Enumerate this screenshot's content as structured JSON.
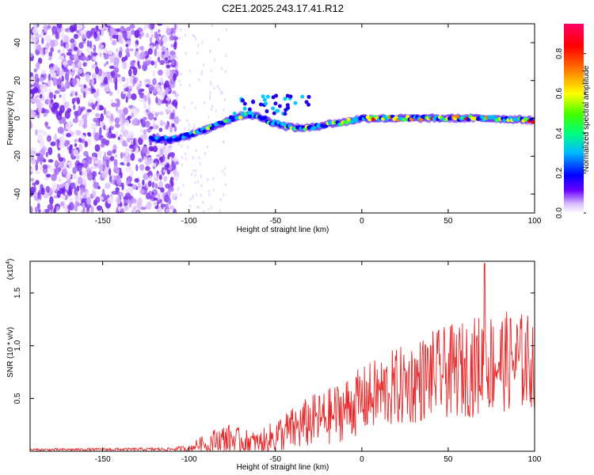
{
  "title": "C2E1.2025.243.17.41.R12",
  "chart_data": [
    {
      "type": "heatmap",
      "name": "spectrogram",
      "title": "C2E1.2025.243.17.41.R12",
      "xlabel": "Height of straight line (km)",
      "ylabel": "Frequency (Hz)",
      "xlim": [
        -192,
        100
      ],
      "ylim": [
        -50,
        50
      ],
      "xticks": [
        -150,
        -100,
        -50,
        0,
        50,
        100
      ],
      "xtick_labels": [
        "-150",
        "-100",
        "-50",
        "0",
        "50",
        "100"
      ],
      "yticks": [
        -40,
        -20,
        0,
        20,
        40
      ],
      "ytick_labels": [
        "-40",
        "-20",
        "0",
        "20",
        "40"
      ],
      "ridge": {
        "description_x": [
          -122,
          -110,
          -100,
          -90,
          -80,
          -72,
          -66,
          -60,
          -52,
          -45,
          -38,
          -30,
          -20,
          -10,
          0,
          10,
          25,
          50,
          75,
          100
        ],
        "frequency_hz": [
          -11,
          -11,
          -9,
          -6,
          -2,
          1,
          2,
          1,
          -2,
          -4,
          -5,
          -5,
          -3,
          -2,
          0,
          0,
          0,
          0,
          0,
          -1
        ]
      },
      "noise_region_x": [
        -192,
        -107
      ],
      "colorbar": {
        "label": "Normalized spectral amplitude",
        "range": [
          0,
          0.95
        ],
        "ticks": [
          0.0,
          0.2,
          0.4,
          0.6,
          0.8
        ],
        "tick_labels": [
          "0.0",
          "0.2",
          "0.4",
          "0.6",
          "0.8"
        ],
        "colors": [
          "#ffffff",
          "#6600ff",
          "#0000ff",
          "#00bbff",
          "#00ff80",
          "#40ff00",
          "#ffff00",
          "#ff8000",
          "#ff0000",
          "#ff0066"
        ]
      }
    },
    {
      "type": "line",
      "name": "snr",
      "xlabel": "Height of straight line (km)",
      "ylabel": "SNR (10 * v/v)",
      "yscale_label": "(x10",
      "yscale_exp": "4",
      "yscale_close": ")",
      "xlim": [
        -192,
        100
      ],
      "ylim": [
        0,
        1.8
      ],
      "xticks": [
        -150,
        -100,
        -50,
        0,
        50,
        100
      ],
      "xtick_labels": [
        "-150",
        "-100",
        "-50",
        "0",
        "50",
        "100"
      ],
      "yticks": [
        0.5,
        1.0,
        1.5
      ],
      "ytick_labels": [
        "0.5",
        "1.0",
        "1.5"
      ],
      "color": "#e8282a",
      "envelope": {
        "x": [
          -192,
          -110,
          -100,
          -95,
          -85,
          -78,
          -70,
          -60,
          -55,
          -48,
          -40,
          -30,
          -20,
          -10,
          0,
          10,
          20,
          30,
          40,
          50,
          60,
          70,
          80,
          90,
          100
        ],
        "mean": [
          0.015,
          0.02,
          0.03,
          0.06,
          0.1,
          0.12,
          0.1,
          0.08,
          0.1,
          0.16,
          0.2,
          0.28,
          0.32,
          0.4,
          0.48,
          0.55,
          0.6,
          0.65,
          0.72,
          0.75,
          0.78,
          0.82,
          0.85,
          0.85,
          0.85
        ],
        "spread": [
          0.01,
          0.015,
          0.03,
          0.06,
          0.12,
          0.14,
          0.12,
          0.1,
          0.14,
          0.18,
          0.22,
          0.25,
          0.27,
          0.3,
          0.32,
          0.35,
          0.38,
          0.4,
          0.42,
          0.44,
          0.46,
          0.5,
          0.48,
          0.48,
          0.45
        ]
      },
      "peak": {
        "x": 71,
        "y": 1.78
      }
    }
  ]
}
